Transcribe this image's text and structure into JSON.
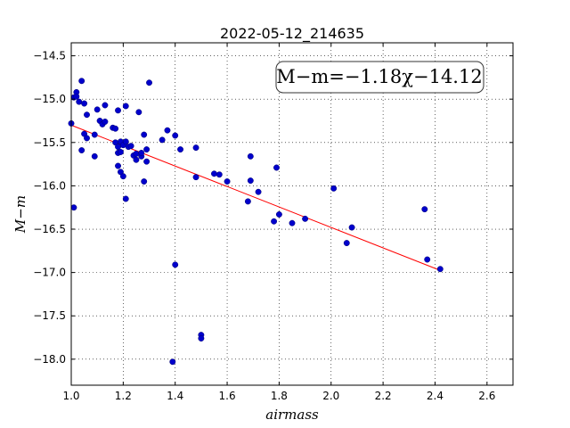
{
  "chart_data": {
    "type": "scatter",
    "title": "2022-05-12_214635",
    "xlabel": "airmass",
    "ylabel": "M−m",
    "xlim": [
      1.0,
      2.7
    ],
    "ylim": [
      -18.3,
      -14.35
    ],
    "x_ticks": [
      1.0,
      1.2,
      1.4,
      1.6,
      1.8,
      2.0,
      2.2,
      2.4,
      2.6
    ],
    "y_ticks": [
      -14.5,
      -15.0,
      -15.5,
      -16.0,
      -16.5,
      -17.0,
      -17.5,
      -18.0
    ],
    "x_tick_labels": [
      "1.0",
      "1.2",
      "1.4",
      "1.6",
      "1.8",
      "2.0",
      "2.2",
      "2.4",
      "2.6"
    ],
    "y_tick_labels": [
      "−14.5",
      "−15.0",
      "−15.5",
      "−16.0",
      "−16.5",
      "−17.0",
      "−17.5",
      "−18.0"
    ],
    "grid": true,
    "annotation": "M−m=−1.18χ−14.12",
    "fit": {
      "slope": -1.18,
      "intercept": -14.12,
      "x_range": [
        1.0,
        2.42
      ],
      "color": "#ff0000"
    },
    "marker_color": "#0000cc",
    "points": [
      {
        "x": 1.0,
        "y": -15.28
      },
      {
        "x": 1.01,
        "y": -14.98
      },
      {
        "x": 1.02,
        "y": -14.92
      },
      {
        "x": 1.02,
        "y": -14.97
      },
      {
        "x": 1.03,
        "y": -15.03
      },
      {
        "x": 1.04,
        "y": -14.79
      },
      {
        "x": 1.05,
        "y": -15.05
      },
      {
        "x": 1.01,
        "y": -16.25
      },
      {
        "x": 1.04,
        "y": -15.59
      },
      {
        "x": 1.05,
        "y": -15.4
      },
      {
        "x": 1.06,
        "y": -15.45
      },
      {
        "x": 1.06,
        "y": -15.18
      },
      {
        "x": 1.09,
        "y": -15.41
      },
      {
        "x": 1.09,
        "y": -15.66
      },
      {
        "x": 1.1,
        "y": -15.12
      },
      {
        "x": 1.11,
        "y": -15.25
      },
      {
        "x": 1.12,
        "y": -15.29
      },
      {
        "x": 1.13,
        "y": -15.07
      },
      {
        "x": 1.13,
        "y": -15.26
      },
      {
        "x": 1.16,
        "y": -15.33
      },
      {
        "x": 1.17,
        "y": -15.5
      },
      {
        "x": 1.17,
        "y": -15.34
      },
      {
        "x": 1.18,
        "y": -15.13
      },
      {
        "x": 1.18,
        "y": -15.55
      },
      {
        "x": 1.18,
        "y": -15.62
      },
      {
        "x": 1.18,
        "y": -15.77
      },
      {
        "x": 1.19,
        "y": -15.49
      },
      {
        "x": 1.19,
        "y": -15.61
      },
      {
        "x": 1.19,
        "y": -15.84
      },
      {
        "x": 1.2,
        "y": -15.89
      },
      {
        "x": 1.2,
        "y": -15.53
      },
      {
        "x": 1.21,
        "y": -15.08
      },
      {
        "x": 1.21,
        "y": -16.15
      },
      {
        "x": 1.21,
        "y": -15.49
      },
      {
        "x": 1.22,
        "y": -15.55
      },
      {
        "x": 1.23,
        "y": -15.54
      },
      {
        "x": 1.24,
        "y": -15.65
      },
      {
        "x": 1.25,
        "y": -15.63
      },
      {
        "x": 1.25,
        "y": -15.7
      },
      {
        "x": 1.26,
        "y": -15.15
      },
      {
        "x": 1.27,
        "y": -15.66
      },
      {
        "x": 1.27,
        "y": -15.62
      },
      {
        "x": 1.28,
        "y": -15.41
      },
      {
        "x": 1.28,
        "y": -15.95
      },
      {
        "x": 1.29,
        "y": -15.58
      },
      {
        "x": 1.29,
        "y": -15.72
      },
      {
        "x": 1.3,
        "y": -14.81
      },
      {
        "x": 1.35,
        "y": -15.47
      },
      {
        "x": 1.37,
        "y": -15.36
      },
      {
        "x": 1.39,
        "y": -18.03
      },
      {
        "x": 1.4,
        "y": -15.42
      },
      {
        "x": 1.4,
        "y": -16.91
      },
      {
        "x": 1.42,
        "y": -15.58
      },
      {
        "x": 1.48,
        "y": -15.56
      },
      {
        "x": 1.48,
        "y": -15.9
      },
      {
        "x": 1.5,
        "y": -17.72
      },
      {
        "x": 1.5,
        "y": -17.76
      },
      {
        "x": 1.55,
        "y": -15.86
      },
      {
        "x": 1.57,
        "y": -15.87
      },
      {
        "x": 1.6,
        "y": -15.95
      },
      {
        "x": 1.68,
        "y": -16.18
      },
      {
        "x": 1.69,
        "y": -15.66
      },
      {
        "x": 1.69,
        "y": -15.94
      },
      {
        "x": 1.72,
        "y": -16.07
      },
      {
        "x": 1.78,
        "y": -16.41
      },
      {
        "x": 1.79,
        "y": -15.79
      },
      {
        "x": 1.8,
        "y": -16.33
      },
      {
        "x": 1.85,
        "y": -16.43
      },
      {
        "x": 1.9,
        "y": -16.38
      },
      {
        "x": 2.01,
        "y": -16.03
      },
      {
        "x": 2.06,
        "y": -16.66
      },
      {
        "x": 2.08,
        "y": -16.48
      },
      {
        "x": 2.36,
        "y": -16.27
      },
      {
        "x": 2.37,
        "y": -16.85
      },
      {
        "x": 2.42,
        "y": -16.96
      }
    ]
  }
}
